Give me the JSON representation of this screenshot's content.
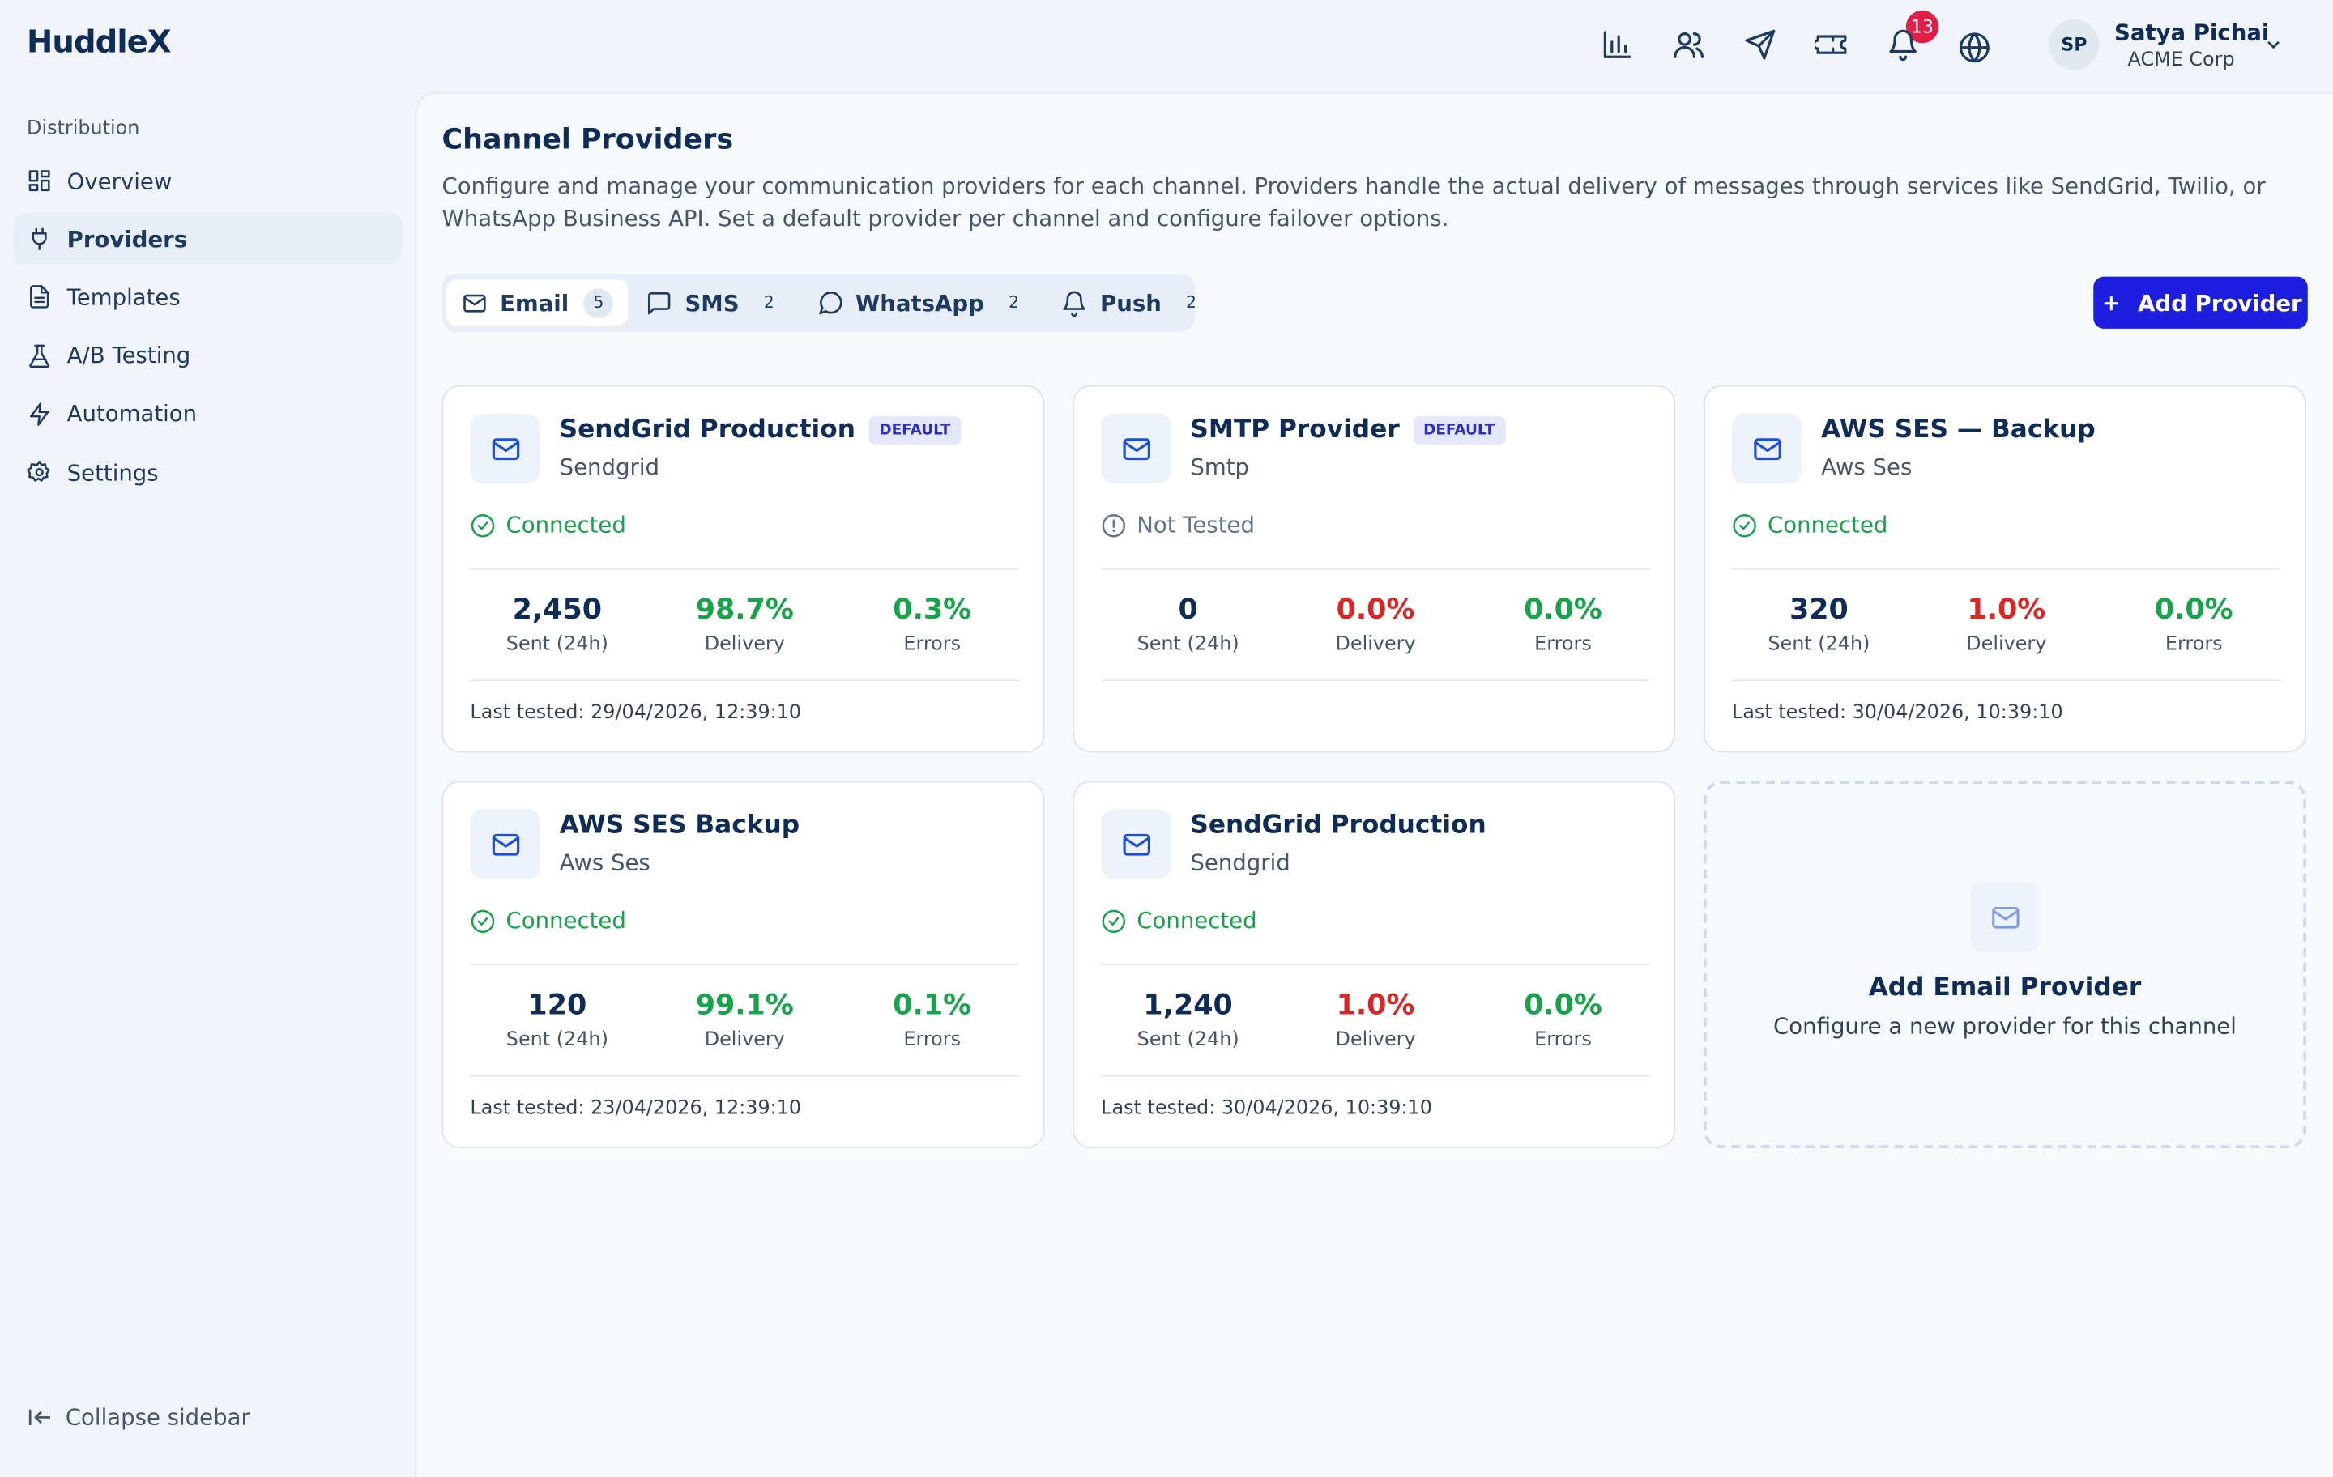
{
  "brand": "HuddleX",
  "sidebar": {
    "section": "Distribution",
    "items": [
      "Overview",
      "Providers",
      "Templates",
      "A/B Testing",
      "Automation",
      "Settings"
    ],
    "collapse": "Collapse sidebar"
  },
  "header": {
    "notifications": "13",
    "initials": "SP",
    "user_name": "Satya Pichai",
    "org": "ACME Corp"
  },
  "page": {
    "title": "Channel Providers",
    "description": "Configure and manage your communication providers for each channel. Providers handle the actual delivery of messages through services like SendGrid, Twilio, or WhatsApp Business API. Set a default provider per channel and configure failover options."
  },
  "tabs": [
    {
      "label": "Email",
      "count": 5
    },
    {
      "label": "SMS",
      "count": 2
    },
    {
      "label": "WhatsApp",
      "count": 2
    },
    {
      "label": "Push",
      "count": 2
    }
  ],
  "add_button": "Add Provider",
  "stat_labels": {
    "sent": "Sent (24h)",
    "delivery": "Delivery",
    "errors": "Errors"
  },
  "providers": [
    {
      "name": "SendGrid Production",
      "badge": "DEFAULT",
      "kind": "Sendgrid",
      "status": "Connected",
      "status_color": "#16a34a",
      "sent": "2,450",
      "delivery": "98.7%",
      "delivery_color": "#16a34a",
      "errors": "0.3%",
      "errors_color": "#16a34a",
      "last_tested": "Last tested: 29/04/2026, 12:39:10"
    },
    {
      "name": "SMTP Provider",
      "badge": "DEFAULT",
      "kind": "Smtp",
      "status": "Not Tested",
      "status_color": "#64748b",
      "sent": "0",
      "delivery": "0.0%",
      "delivery_color": "#dc2626",
      "errors": "0.0%",
      "errors_color": "#16a34a"
    },
    {
      "name": "AWS SES — Backup",
      "kind": "Aws Ses",
      "status": "Connected",
      "status_color": "#16a34a",
      "sent": "320",
      "delivery": "1.0%",
      "delivery_color": "#dc2626",
      "errors": "0.0%",
      "errors_color": "#16a34a",
      "last_tested": "Last tested: 30/04/2026, 10:39:10"
    },
    {
      "name": "AWS SES Backup",
      "kind": "Aws Ses",
      "status": "Connected",
      "status_color": "#16a34a",
      "sent": "120",
      "delivery": "99.1%",
      "delivery_color": "#16a34a",
      "errors": "0.1%",
      "errors_color": "#16a34a",
      "last_tested": "Last tested: 23/04/2026, 12:39:10"
    },
    {
      "name": "SendGrid Production",
      "kind": "Sendgrid",
      "status": "Connected",
      "status_color": "#16a34a",
      "sent": "1,240",
      "delivery": "1.0%",
      "delivery_color": "#dc2626",
      "errors": "0.0%",
      "errors_color": "#16a34a",
      "last_tested": "Last tested: 30/04/2026, 10:39:10"
    }
  ],
  "add_card": {
    "title": "Add Email Provider",
    "subtitle": "Configure a new provider for this channel"
  }
}
